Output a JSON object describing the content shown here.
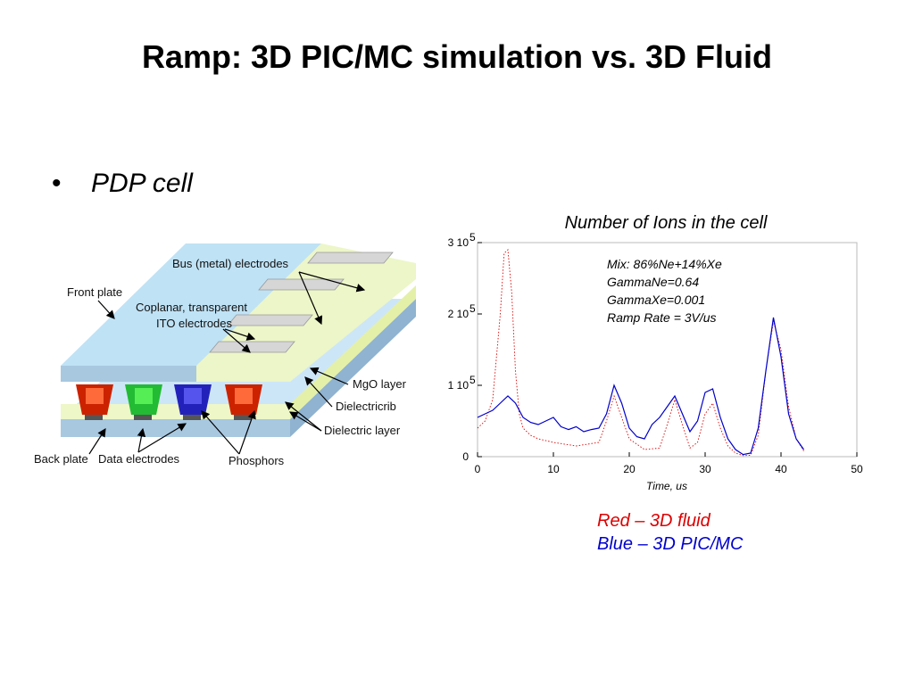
{
  "slide": {
    "title": "Ramp: 3D PIC/MC simulation vs. 3D Fluid",
    "bullet": "•",
    "bullet_text": "PDP cell"
  },
  "diagram": {
    "labels": {
      "front_plate": "Front plate",
      "bus_electrodes": "Bus (metal) electrodes",
      "ito_line1": "Coplanar, transparent",
      "ito_line2": "ITO electrodes",
      "mgo": "MgO layer",
      "dielectric_rib": "Dielectricrib",
      "dielectric_layer": "Dielectric layer",
      "back_plate": "Back plate",
      "data_electrodes": "Data electrodes",
      "phosphors": "Phosphors"
    }
  },
  "chart_data": {
    "type": "line",
    "title": "Number of Ions in the cell",
    "xlabel": "Time, us",
    "ylabel": "",
    "xlim": [
      0,
      50
    ],
    "ylim": [
      0,
      300000
    ],
    "xticks": [
      0,
      10,
      20,
      30,
      40,
      50
    ],
    "yticks": [
      {
        "value": 0,
        "label": "0",
        "exp": ""
      },
      {
        "value": 100000,
        "label": "1 10",
        "exp": "5"
      },
      {
        "value": 200000,
        "label": "2 10",
        "exp": "5"
      },
      {
        "value": 300000,
        "label": "3 10",
        "exp": "5"
      }
    ],
    "annotations": [
      "Mix: 86%Ne+14%Xe",
      "GammaNe=0.64",
      "GammaXe=0.001",
      "Ramp Rate = 3V/us"
    ],
    "series": [
      {
        "name": "Red – 3D fluid",
        "color": "#dd0000",
        "x": [
          0,
          1,
          2,
          3,
          3.5,
          4,
          4.5,
          5,
          5.5,
          6,
          7,
          8,
          10,
          13,
          16,
          17,
          18,
          19,
          20,
          22,
          24,
          25,
          26,
          27,
          28,
          29,
          30,
          31,
          32,
          33,
          34,
          35,
          36,
          37,
          38,
          39,
          40,
          41,
          42,
          43
        ],
        "y": [
          40000,
          50000,
          80000,
          200000,
          285000,
          290000,
          230000,
          120000,
          60000,
          40000,
          30000,
          25000,
          20000,
          15000,
          20000,
          50000,
          85000,
          55000,
          25000,
          10000,
          12000,
          45000,
          80000,
          45000,
          12000,
          20000,
          60000,
          75000,
          40000,
          15000,
          5000,
          1500,
          2000,
          30000,
          120000,
          190000,
          150000,
          70000,
          25000,
          8000
        ]
      },
      {
        "name": "Blue – 3D PIC/MC",
        "color": "#0000cc",
        "x": [
          0,
          1,
          2,
          3,
          4,
          5,
          6,
          7,
          8,
          9,
          10,
          11,
          12,
          13,
          14,
          15,
          16,
          17,
          18,
          19,
          20,
          21,
          22,
          23,
          24,
          25,
          26,
          27,
          28,
          29,
          30,
          31,
          32,
          33,
          34,
          35,
          36,
          37,
          38,
          39,
          40,
          41,
          42,
          43
        ],
        "y": [
          55000,
          60000,
          65000,
          75000,
          85000,
          75000,
          55000,
          48000,
          45000,
          50000,
          55000,
          42000,
          38000,
          42000,
          35000,
          38000,
          40000,
          60000,
          100000,
          75000,
          40000,
          28000,
          25000,
          45000,
          55000,
          70000,
          85000,
          60000,
          35000,
          50000,
          90000,
          95000,
          55000,
          25000,
          10000,
          3000,
          5000,
          40000,
          120000,
          195000,
          140000,
          60000,
          25000,
          10000
        ]
      }
    ]
  }
}
